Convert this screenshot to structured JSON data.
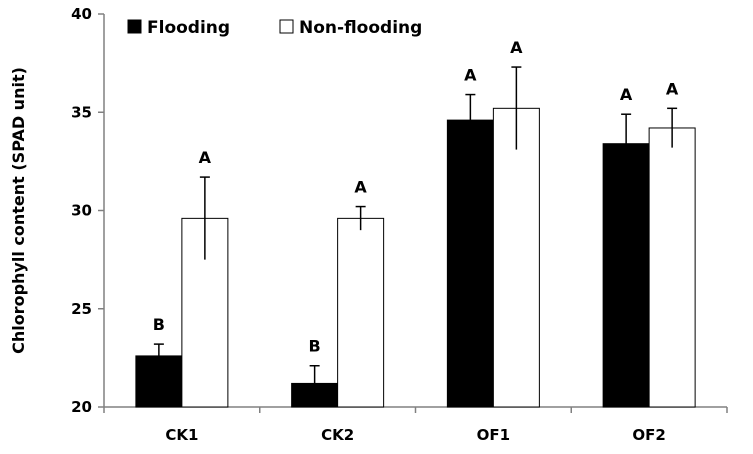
{
  "chart_data": {
    "type": "bar",
    "title": "",
    "xlabel": "",
    "ylabel": "Chlorophyll content (SPAD unit)",
    "ylim": [
      20,
      40
    ],
    "yticks": [
      20,
      25,
      30,
      35,
      40
    ],
    "categories": [
      "CK1",
      "CK2",
      "OF1",
      "OF2"
    ],
    "series": [
      {
        "name": "Flooding",
        "color": "#000000",
        "values": [
          22.6,
          21.2,
          34.6,
          33.4
        ],
        "errors": [
          0.6,
          0.9,
          1.3,
          1.5
        ],
        "labels": [
          "B",
          "B",
          "A",
          "A"
        ]
      },
      {
        "name": "Non-flooding",
        "color": "#ffffff",
        "values": [
          29.6,
          29.6,
          35.2,
          34.2
        ],
        "errors": [
          2.1,
          0.6,
          2.1,
          1.0
        ],
        "labels": [
          "A",
          "A",
          "A",
          "A"
        ]
      }
    ],
    "legend_position": "top-left",
    "grid": false
  }
}
